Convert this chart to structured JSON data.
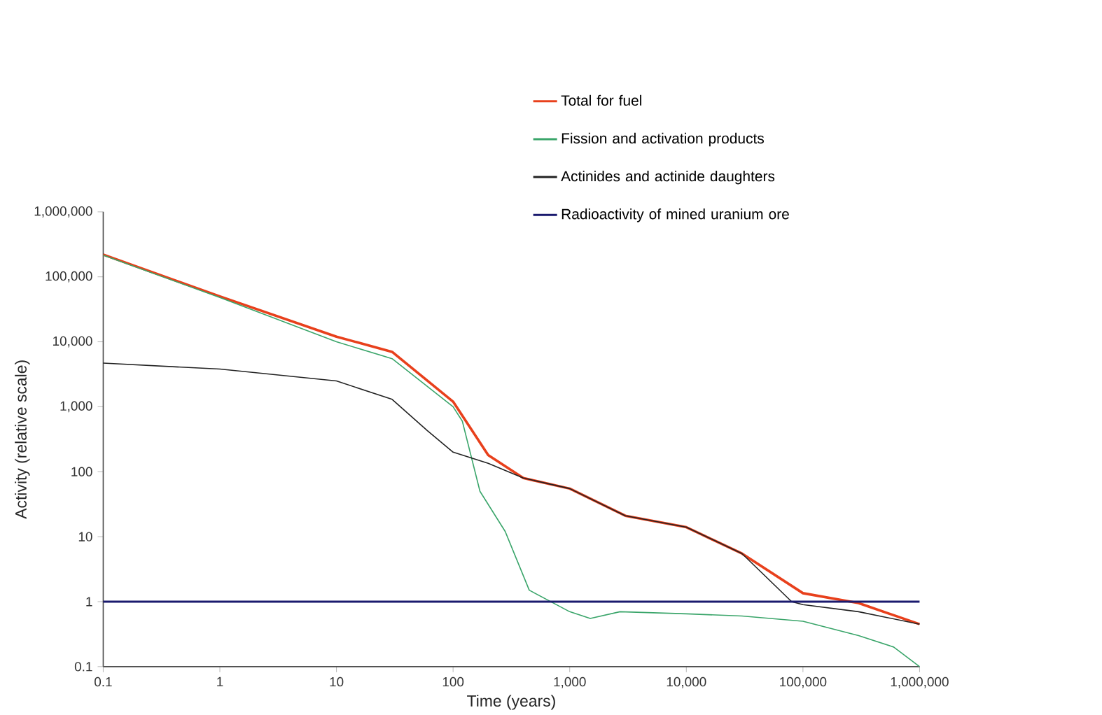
{
  "chart_data": {
    "type": "line",
    "xlabel": "Time (years)",
    "ylabel": "Activity (relative scale)",
    "log": "xy",
    "legend": "top right",
    "xlim": [
      0.1,
      1000000
    ],
    "ylim": [
      0.1,
      1000000
    ],
    "xticks": [
      0.1,
      1,
      10,
      100,
      {
        "value": 1000,
        "label": "1,000"
      },
      {
        "value": 10000,
        "label": "10,000"
      },
      {
        "value": 100000,
        "label": "100,000"
      },
      {
        "value": 1000000,
        "label": "1,000,000"
      }
    ],
    "yticks": [
      0.1,
      1,
      10,
      100,
      {
        "value": 1000,
        "label": "1,000"
      },
      {
        "value": 10000,
        "label": "10,000"
      },
      {
        "value": 100000,
        "label": "100,000"
      },
      {
        "value": 1000000,
        "label": "1,000,000"
      }
    ],
    "series": [
      {
        "name": "Total for fuel",
        "color": "#e8401c",
        "x": [
          0.1,
          1,
          10,
          30,
          100,
          200,
          400,
          1000,
          3000,
          10000,
          30000,
          100000,
          300000,
          1000000
        ],
        "values": [
          220000,
          50000,
          12000,
          7000,
          1200,
          180,
          80,
          55,
          21,
          14,
          5.5,
          1.35,
          0.95,
          0.45
        ]
      },
      {
        "name": "Fission and activation products",
        "color": "#3aa56a",
        "x": [
          0.1,
          1,
          10,
          30,
          100,
          120,
          170,
          280,
          450,
          1000,
          1500,
          2700,
          10000,
          30000,
          100000,
          300000,
          600000,
          1000000
        ],
        "values": [
          215000,
          48000,
          10000,
          5500,
          1000,
          600,
          50,
          12,
          1.5,
          0.7,
          0.55,
          0.7,
          0.65,
          0.6,
          0.5,
          0.3,
          0.2,
          0.1
        ]
      },
      {
        "name": "Actinides and actinide daughters",
        "color": "#222222",
        "x": [
          0.1,
          1,
          10,
          30,
          60,
          100,
          200,
          400,
          1000,
          3000,
          10000,
          30000,
          80000,
          100000,
          300000,
          1000000
        ],
        "values": [
          4700,
          3800,
          2500,
          1300,
          430,
          200,
          135,
          80,
          55,
          21,
          14,
          5.5,
          1.0,
          0.9,
          0.7,
          0.45
        ]
      },
      {
        "name": "Radioactivity of mined uranium ore",
        "color": "#1a1a6e",
        "x": [
          0.1,
          1000000
        ],
        "values": [
          1,
          1
        ]
      }
    ]
  }
}
